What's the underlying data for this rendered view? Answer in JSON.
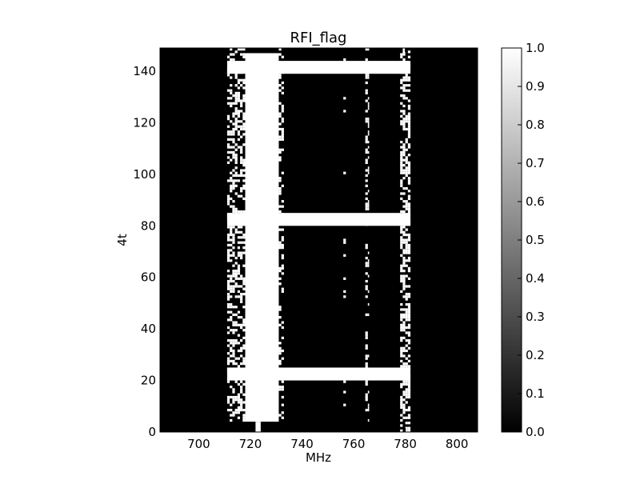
{
  "chart_data": {
    "type": "heatmap",
    "title": "RFI_flag",
    "xlabel": "MHz",
    "ylabel": "4t",
    "xlim": [
      685,
      808
    ],
    "ylim": [
      0,
      149
    ],
    "x_ticks": [
      700,
      720,
      740,
      760,
      780,
      800
    ],
    "y_ticks": [
      0,
      20,
      40,
      60,
      80,
      100,
      120,
      140
    ],
    "colormap": "gray",
    "background_value": 0.0,
    "flagged_value": 1.0,
    "colorbar": {
      "range": [
        0.0,
        1.0
      ],
      "ticks": [
        "0.0",
        "0.1",
        "0.2",
        "0.3",
        "0.4",
        "0.5",
        "0.6",
        "0.7",
        "0.8",
        "0.9",
        "1.0"
      ]
    },
    "solid_regions": [
      {
        "x": [
          718,
          731
        ],
        "y": [
          4,
          147
        ],
        "value": 1.0
      },
      {
        "x": [
          722,
          724
        ],
        "y": [
          0,
          4
        ],
        "value": 1.0
      },
      {
        "x": [
          711,
          782
        ],
        "y": [
          139,
          144
        ],
        "value": 1.0
      },
      {
        "x": [
          711,
          782
        ],
        "y": [
          80,
          85
        ],
        "value": 1.0
      },
      {
        "x": [
          711,
          782
        ],
        "y": [
          20,
          25
        ],
        "value": 1.0
      }
    ],
    "speckle_bands": [
      {
        "x": [
          711,
          718
        ],
        "y": [
          4,
          149
        ],
        "density": 0.45
      },
      {
        "x": [
          731,
          733
        ],
        "y": [
          4,
          149
        ],
        "density": 0.3
      },
      {
        "x": [
          764.5,
          766
        ],
        "y": [
          4,
          149
        ],
        "density": 0.35
      },
      {
        "x": [
          778,
          782
        ],
        "y": [
          0,
          149
        ],
        "density": 0.55
      },
      {
        "x": [
          756,
          757
        ],
        "y": [
          4,
          149
        ],
        "density": 0.08
      }
    ]
  }
}
